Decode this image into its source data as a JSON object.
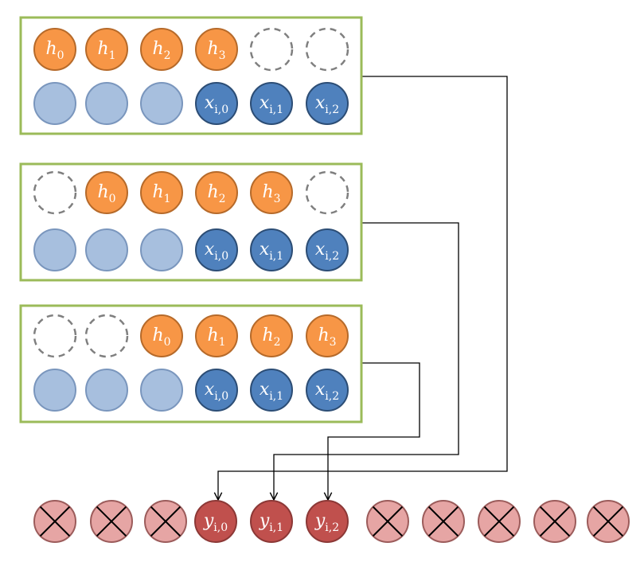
{
  "colors": {
    "panel_border": "#9BBB59",
    "orange_fill": "#F79646",
    "orange_stroke": "#B66A2A",
    "dark_blue_fill": "#4F81BD",
    "dark_blue_stroke": "#2C4D75",
    "light_blue_fill": "#A7BFDE",
    "light_blue_stroke": "#7A96BD",
    "empty_stroke": "#7F7F7F",
    "red_fill": "#C0504D",
    "red_stroke": "#8C3836",
    "pink_fill": "#E6A5A4",
    "pink_stroke": "#9C5C5B",
    "connector": "#000000",
    "label_text": "#FFFFFF"
  },
  "panels": [
    {
      "h_row": [
        "h",
        "h",
        "h",
        "h",
        "",
        ""
      ],
      "h_subs": [
        "0",
        "1",
        "2",
        "3",
        "",
        ""
      ],
      "x_row": [
        "",
        "",
        "",
        "x",
        "x",
        "x"
      ],
      "x_subs": [
        "",
        "",
        "",
        "i,0",
        "i,1",
        "i,2"
      ]
    },
    {
      "h_row": [
        "",
        "h",
        "h",
        "h",
        "h",
        ""
      ],
      "h_subs": [
        "",
        "0",
        "1",
        "2",
        "3",
        ""
      ],
      "x_row": [
        "",
        "",
        "",
        "x",
        "x",
        "x"
      ],
      "x_subs": [
        "",
        "",
        "",
        "i,0",
        "i,1",
        "i,2"
      ]
    },
    {
      "h_row": [
        "",
        "",
        "h",
        "h",
        "h",
        "h"
      ],
      "h_subs": [
        "",
        "",
        "0",
        "1",
        "2",
        "3"
      ],
      "x_row": [
        "",
        "",
        "",
        "x",
        "x",
        "x"
      ],
      "x_subs": [
        "",
        "",
        "",
        "i,0",
        "i,1",
        "i,2"
      ]
    }
  ],
  "outputs": {
    "labels": [
      "",
      "",
      "",
      "y",
      "y",
      "y",
      "",
      "",
      "",
      "",
      ""
    ],
    "subs": [
      "",
      "",
      "",
      "i,0",
      "i,1",
      "i,2",
      "",
      "",
      "",
      "",
      ""
    ]
  }
}
